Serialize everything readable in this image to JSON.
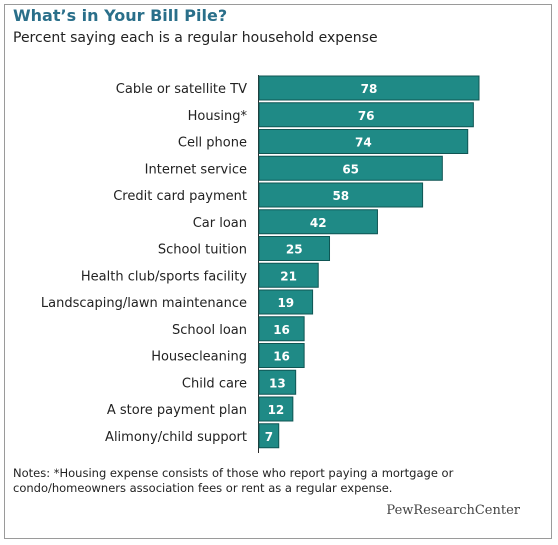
{
  "chart_data": {
    "type": "bar",
    "orientation": "horizontal",
    "title": "What’s in Your Bill Pile?",
    "subtitle": "Percent saying each is a regular household expense",
    "categories": [
      "Cable or satellite TV",
      "Housing*",
      "Cell phone",
      "Internet service",
      "Credit card payment",
      "Car loan",
      "School tuition",
      "Health club/sports facility",
      "Landscaping/lawn maintenance",
      "School loan",
      "Housecleaning",
      "Child care",
      "A store payment plan",
      "Alimony/child support"
    ],
    "values": [
      78,
      76,
      74,
      65,
      58,
      42,
      25,
      21,
      19,
      16,
      16,
      13,
      12,
      7
    ],
    "data_labels": true,
    "bar_color": "#1f8a86",
    "label_color": "#ffffff",
    "xlim": [
      0,
      78
    ]
  },
  "notes": "Notes: *Housing expense consists of those who report paying a mortgage or condo/homeowners association fees or rent as a regular expense.",
  "brand": "PewResearchCenter"
}
